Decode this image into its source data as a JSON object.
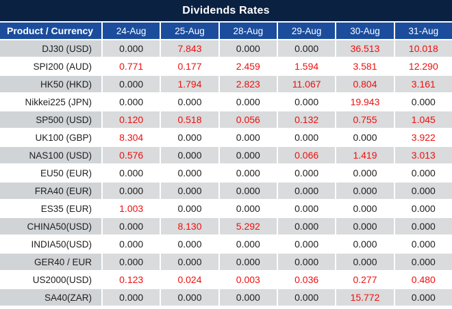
{
  "title": "Dividends Rates",
  "table": {
    "product_header": "Product / Currency",
    "date_headers": [
      "24-Aug",
      "25-Aug",
      "28-Aug",
      "29-Aug",
      "30-Aug",
      "31-Aug"
    ],
    "rows": [
      {
        "product": "DJ30 (USD)",
        "values": [
          "0.000",
          "7.843",
          "0.000",
          "0.000",
          "36.513",
          "10.018"
        ]
      },
      {
        "product": "SPI200 (AUD)",
        "values": [
          "0.771",
          "0.177",
          "2.459",
          "1.594",
          "3.581",
          "12.290"
        ]
      },
      {
        "product": "HK50 (HKD)",
        "values": [
          "0.000",
          "1.794",
          "2.823",
          "11.067",
          "0.804",
          "3.161"
        ]
      },
      {
        "product": "Nikkei225 (JPN)",
        "values": [
          "0.000",
          "0.000",
          "0.000",
          "0.000",
          "19.943",
          "0.000"
        ]
      },
      {
        "product": "SP500 (USD)",
        "values": [
          "0.120",
          "0.518",
          "0.056",
          "0.132",
          "0.755",
          "1.045"
        ]
      },
      {
        "product": "UK100 (GBP)",
        "values": [
          "8.304",
          "0.000",
          "0.000",
          "0.000",
          "0.000",
          "3.922"
        ]
      },
      {
        "product": "NAS100 (USD)",
        "values": [
          "0.576",
          "0.000",
          "0.000",
          "0.066",
          "1.419",
          "3.013"
        ]
      },
      {
        "product": "EU50 (EUR)",
        "values": [
          "0.000",
          "0.000",
          "0.000",
          "0.000",
          "0.000",
          "0.000"
        ]
      },
      {
        "product": "FRA40 (EUR)",
        "values": [
          "0.000",
          "0.000",
          "0.000",
          "0.000",
          "0.000",
          "0.000"
        ]
      },
      {
        "product": "ES35 (EUR)",
        "values": [
          "1.003",
          "0.000",
          "0.000",
          "0.000",
          "0.000",
          "0.000"
        ]
      },
      {
        "product": "CHINA50(USD)",
        "values": [
          "0.000",
          "8.130",
          "5.292",
          "0.000",
          "0.000",
          "0.000"
        ]
      },
      {
        "product": "INDIA50(USD)",
        "values": [
          "0.000",
          "0.000",
          "0.000",
          "0.000",
          "0.000",
          "0.000"
        ]
      },
      {
        "product": "GER40 / EUR",
        "values": [
          "0.000",
          "0.000",
          "0.000",
          "0.000",
          "0.000",
          "0.000"
        ]
      },
      {
        "product": "US2000(USD)",
        "values": [
          "0.123",
          "0.024",
          "0.003",
          "0.036",
          "0.277",
          "0.480"
        ]
      },
      {
        "product": "SA40(ZAR)",
        "values": [
          "0.000",
          "0.000",
          "0.000",
          "0.000",
          "15.772",
          "0.000"
        ]
      }
    ]
  },
  "colors": {
    "title_bg": "#0a2142",
    "header_bg": "#1b4d9c",
    "header_text": "#ffffff",
    "row_plain": "#ffffff",
    "row_stripe": "#d9dbdc",
    "row_stripe_product": "#d1d4d7",
    "value_positive": "#f10d0d",
    "value_zero": "#1d1d1d"
  }
}
